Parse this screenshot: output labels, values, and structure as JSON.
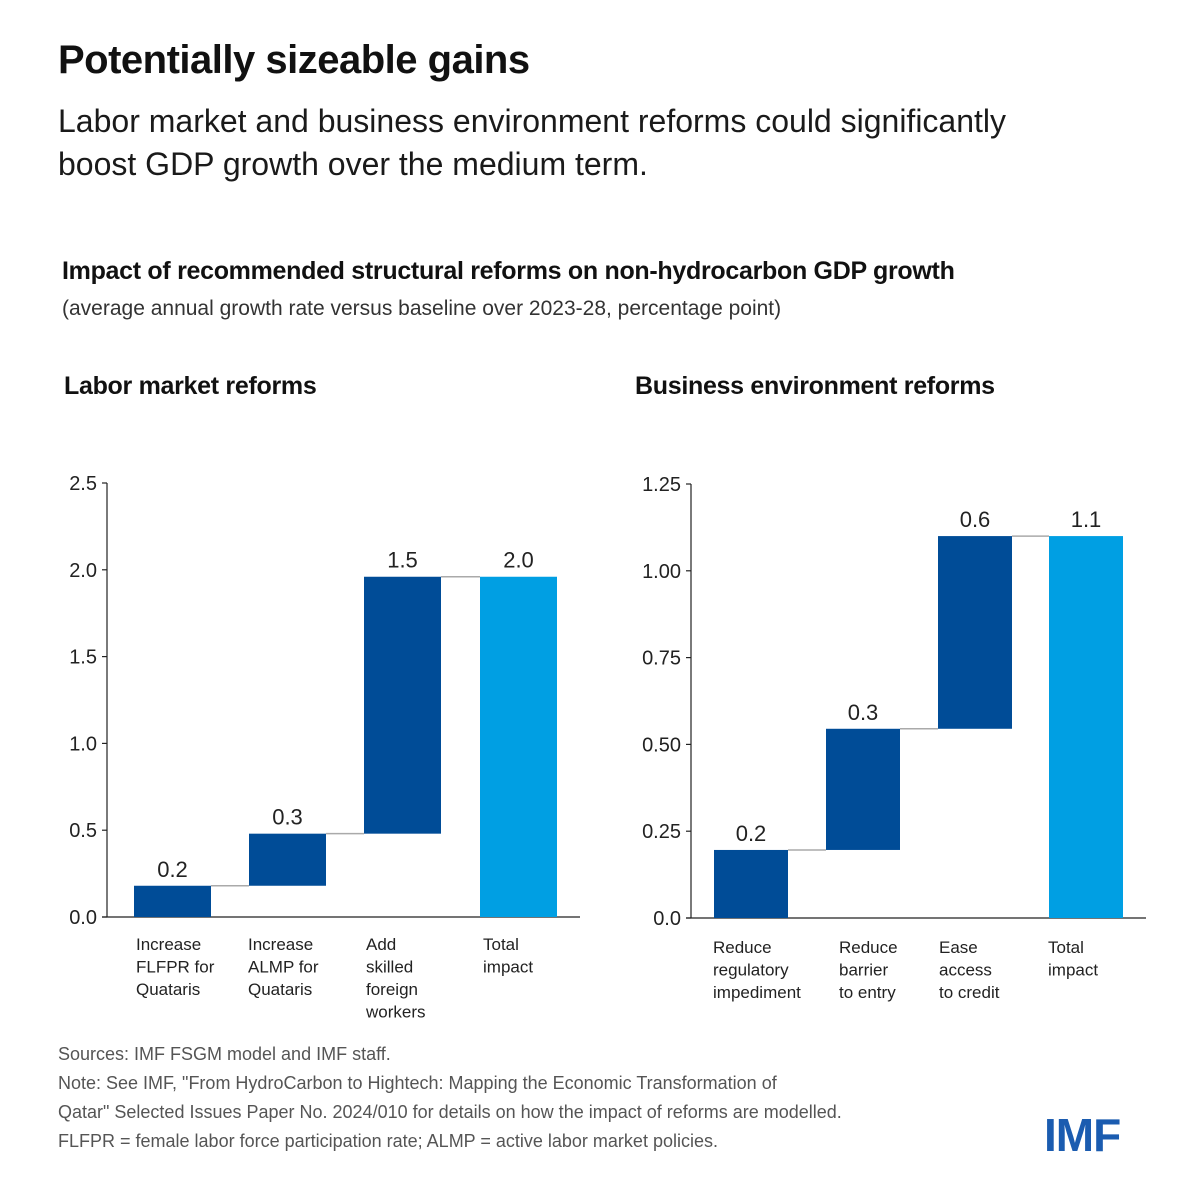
{
  "header": {
    "title": "Potentially sizeable gains",
    "subtitle": "Labor market and business environment reforms could significantly boost GDP growth over the medium term."
  },
  "figure": {
    "title": "Impact of recommended structural reforms on non-hydrocarbon GDP growth",
    "subtitle": "(average annual growth rate versus baseline over 2023-28, percentage point)"
  },
  "colors": {
    "increment": "#004c97",
    "total": "#009fe3",
    "connector": "#aaaaaa",
    "axis": "#222222"
  },
  "chart_data": [
    {
      "type": "bar",
      "subtype": "waterfall",
      "title": "Labor market reforms",
      "xlabel": "",
      "ylabel": "",
      "ylim": [
        0,
        2.5
      ],
      "yticks": [
        0.0,
        0.5,
        1.0,
        1.5,
        2.0,
        2.5
      ],
      "ytick_labels": [
        "0.0",
        "0.5",
        "1.0",
        "1.5",
        "2.0",
        "2.5"
      ],
      "grid": false,
      "categories": [
        [
          "Increase",
          "FLFPR for",
          "Quataris"
        ],
        [
          "Increase",
          "ALMP for",
          "Quataris"
        ],
        [
          "Add",
          "skilled",
          "foreign",
          "workers"
        ],
        [
          "Total",
          "impact"
        ]
      ],
      "bars": [
        {
          "start": 0.0,
          "end": 0.18,
          "label": "0.2",
          "kind": "increment"
        },
        {
          "start": 0.18,
          "end": 0.48,
          "label": "0.3",
          "kind": "increment"
        },
        {
          "start": 0.48,
          "end": 1.96,
          "label": "1.5",
          "kind": "increment"
        },
        {
          "start": 0.0,
          "end": 1.96,
          "label": "2.0",
          "kind": "total"
        }
      ]
    },
    {
      "type": "bar",
      "subtype": "waterfall",
      "title": "Business environment reforms",
      "xlabel": "",
      "ylabel": "",
      "ylim": [
        0,
        1.25
      ],
      "yticks": [
        0.0,
        0.25,
        0.5,
        0.75,
        1.0,
        1.25
      ],
      "ytick_labels": [
        "0.0",
        "0.25",
        "0.50",
        "0.75",
        "1.00",
        "1.25"
      ],
      "grid": false,
      "categories": [
        [
          "Reduce",
          "regulatory",
          "impediment"
        ],
        [
          "Reduce",
          "barrier",
          "to entry"
        ],
        [
          "Ease",
          "access",
          "to credit"
        ],
        [
          "Total",
          "impact"
        ]
      ],
      "bars": [
        {
          "start": 0.0,
          "end": 0.196,
          "label": "0.2",
          "kind": "increment"
        },
        {
          "start": 0.196,
          "end": 0.545,
          "label": "0.3",
          "kind": "increment"
        },
        {
          "start": 0.545,
          "end": 1.1,
          "label": "0.6",
          "kind": "increment"
        },
        {
          "start": 0.0,
          "end": 1.1,
          "label": "1.1",
          "kind": "total"
        }
      ]
    }
  ],
  "footer": {
    "sources": "Sources: IMF FSGM model and IMF staff.",
    "note_line1": "Note: See IMF, \"From HydroCarbon to Hightech: Mapping the Economic Transformation of",
    "note_line2": "Qatar\" Selected Issues Paper No. 2024/010 for details on how the impact of reforms are modelled.",
    "abbreviations": "FLFPR = female labor force participation rate; ALMP = active labor market policies."
  },
  "logo": {
    "text": "IMF"
  }
}
